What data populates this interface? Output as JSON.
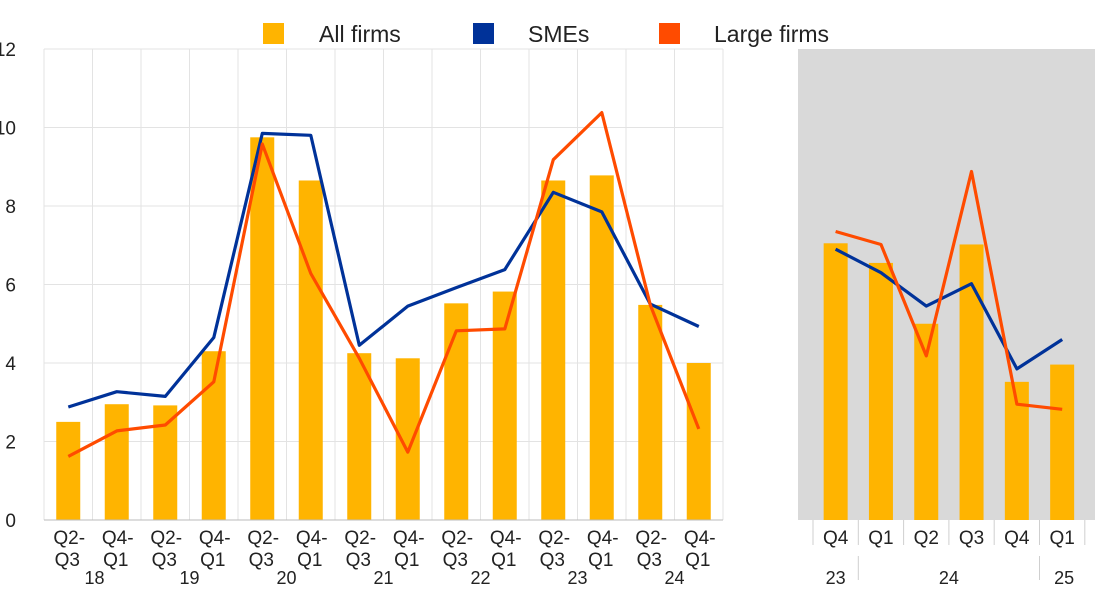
{
  "legend": {
    "items": [
      {
        "label": "All firms",
        "color": "#FFB400"
      },
      {
        "label": "SMEs",
        "color": "#003299"
      },
      {
        "label": "Large firms",
        "color": "#FF4B00"
      }
    ],
    "position": "top-center"
  },
  "colors": {
    "all_firms": "#FFB400",
    "smes": "#003299",
    "large_firms": "#FF4B00",
    "right_panel_background": "#D9D9D9",
    "grid": "#E3E3E3"
  },
  "chart_data": [
    {
      "type": "bar",
      "subtype": "bar-with-lines",
      "categories": [
        "Q2-Q3 18",
        "Q4-Q1 19",
        "Q2-Q3 19",
        "Q4-Q1 20",
        "Q2-Q3 20",
        "Q4-Q1 21",
        "Q2-Q3 21",
        "Q4-Q1 22",
        "Q2-Q3 22",
        "Q4-Q1 23",
        "Q2-Q3 23",
        "Q4-Q1 24",
        "Q2-Q3 24",
        "Q4-Q1 25"
      ],
      "tick_labels": [
        {
          "line1": "Q2-",
          "line2": "Q3"
        },
        {
          "line1": "Q4-",
          "line2": "Q1"
        },
        {
          "line1": "Q2-",
          "line2": "Q3"
        },
        {
          "line1": "Q4-",
          "line2": "Q1"
        },
        {
          "line1": "Q2-",
          "line2": "Q3"
        },
        {
          "line1": "Q4-",
          "line2": "Q1"
        },
        {
          "line1": "Q2-",
          "line2": "Q3"
        },
        {
          "line1": "Q4-",
          "line2": "Q1"
        },
        {
          "line1": "Q2-",
          "line2": "Q3"
        },
        {
          "line1": "Q4-",
          "line2": "Q1"
        },
        {
          "line1": "Q2-",
          "line2": "Q3"
        },
        {
          "line1": "Q4-",
          "line2": "Q1"
        },
        {
          "line1": "Q2-",
          "line2": "Q3"
        },
        {
          "line1": "Q4-",
          "line2": "Q1"
        }
      ],
      "year_labels": [
        "18",
        "19",
        "20",
        "21",
        "22",
        "23",
        "24"
      ],
      "series": [
        {
          "name": "All firms",
          "kind": "bar",
          "values": [
            2.5,
            2.95,
            2.92,
            4.3,
            9.75,
            8.65,
            4.25,
            4.12,
            5.52,
            5.82,
            8.65,
            8.78,
            5.48,
            4.0
          ]
        },
        {
          "name": "SMEs",
          "kind": "line",
          "values": [
            2.88,
            3.27,
            3.15,
            4.65,
            9.85,
            9.8,
            4.45,
            5.45,
            5.92,
            6.38,
            8.35,
            7.85,
            5.5,
            4.93
          ]
        },
        {
          "name": "Large firms",
          "kind": "line",
          "values": [
            1.62,
            2.27,
            2.42,
            3.52,
            9.58,
            6.28,
            4.12,
            1.73,
            4.82,
            4.87,
            9.18,
            10.38,
            5.48,
            2.32
          ]
        }
      ],
      "ylim": [
        0,
        12
      ],
      "yticks": [
        0,
        2,
        4,
        6,
        8,
        10,
        12
      ],
      "grid": true
    },
    {
      "type": "bar",
      "subtype": "bar-with-lines",
      "categories": [
        "Q4 23",
        "Q1 24",
        "Q2 24",
        "Q3 24",
        "Q4 24",
        "Q1 25"
      ],
      "tick_labels": [
        "Q4",
        "Q1",
        "Q2",
        "Q3",
        "Q4",
        "Q1"
      ],
      "year_labels": [
        "23",
        "24",
        "25"
      ],
      "series": [
        {
          "name": "All firms",
          "kind": "bar",
          "values": [
            7.05,
            6.55,
            5.0,
            7.02,
            3.52,
            3.96
          ]
        },
        {
          "name": "SMEs",
          "kind": "line",
          "values": [
            6.9,
            6.3,
            5.45,
            6.02,
            3.85,
            4.6
          ]
        },
        {
          "name": "Large firms",
          "kind": "line",
          "values": [
            7.35,
            7.02,
            4.18,
            8.88,
            2.95,
            2.82
          ]
        }
      ],
      "ylim": [
        0,
        12
      ],
      "grid": false,
      "background": "grey"
    }
  ]
}
